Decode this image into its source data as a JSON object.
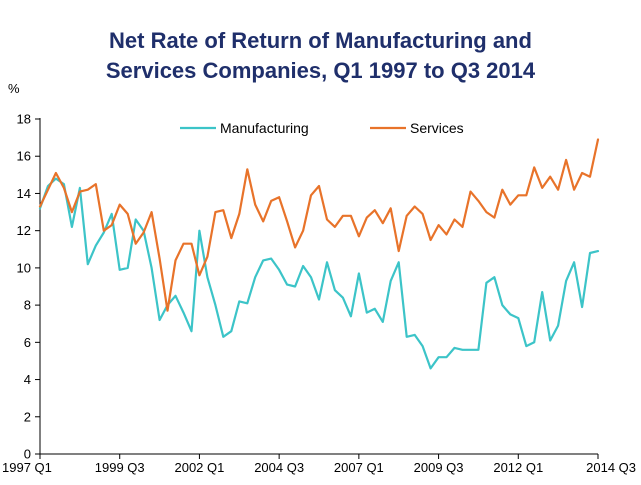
{
  "title_line1": "Net Rate of Return of Manufacturing and",
  "title_line2": "Services Companies, Q1 1997 to Q3 2014",
  "colors": {
    "title": "#1f2f6b",
    "manufacturing": "#3cc4c8",
    "services": "#e8732a",
    "axis": "#000000"
  },
  "chart_data": {
    "type": "line",
    "title": "Net Rate of Return of Manufacturing and Services Companies, Q1 1997 to Q3 2014",
    "ylabel": "%",
    "xlabel": "",
    "ylim": [
      0,
      18
    ],
    "yticks": [
      0,
      2,
      4,
      6,
      8,
      10,
      12,
      14,
      16,
      18
    ],
    "x_tick_labels": [
      "1997 Q1",
      "1999 Q3",
      "2002 Q1",
      "2004 Q3",
      "2007 Q1",
      "2009 Q3",
      "2012 Q1",
      "2014 Q3"
    ],
    "x_tick_index": [
      0,
      10,
      20,
      30,
      40,
      50,
      60,
      70
    ],
    "x_start": "1997 Q1",
    "x_end": "2014 Q3",
    "grid": false,
    "legend_position": "top",
    "series": [
      {
        "name": "Manufacturing",
        "values": [
          13.2,
          14.4,
          14.8,
          14.5,
          12.2,
          14.3,
          10.2,
          11.2,
          11.9,
          12.9,
          9.9,
          10.0,
          12.6,
          12.0,
          10.0,
          7.2,
          8.0,
          8.5,
          7.6,
          6.6,
          12.0,
          9.5,
          8.0,
          6.3,
          6.6,
          8.2,
          8.1,
          9.5,
          10.4,
          10.5,
          9.9,
          9.1,
          9.0,
          10.1,
          9.5,
          8.3,
          10.3,
          8.8,
          8.4,
          7.4,
          9.7,
          7.6,
          7.8,
          7.1,
          9.3,
          10.3,
          6.3,
          6.4,
          5.8,
          4.6,
          5.2,
          5.2,
          5.7,
          5.6,
          5.6,
          5.6,
          9.2,
          9.5,
          8.0,
          7.5,
          7.3,
          5.8,
          6.0,
          8.7,
          6.1,
          6.9,
          9.3,
          10.3,
          7.9,
          10.8,
          10.9
        ]
      },
      {
        "name": "Services",
        "values": [
          13.3,
          14.2,
          15.1,
          14.3,
          13.0,
          14.1,
          14.2,
          14.5,
          12.0,
          12.3,
          13.4,
          12.9,
          11.3,
          11.9,
          13.0,
          10.5,
          7.7,
          10.4,
          11.3,
          11.3,
          9.6,
          10.6,
          13.0,
          13.1,
          11.6,
          12.9,
          15.3,
          13.4,
          12.5,
          13.6,
          13.8,
          12.5,
          11.1,
          12.0,
          13.9,
          14.4,
          12.6,
          12.2,
          12.8,
          12.8,
          11.7,
          12.7,
          13.1,
          12.4,
          13.2,
          10.9,
          12.8,
          13.3,
          12.9,
          11.5,
          12.3,
          11.8,
          12.6,
          12.2,
          14.1,
          13.6,
          13.0,
          12.7,
          14.2,
          13.4,
          13.9,
          13.9,
          15.4,
          14.3,
          14.9,
          14.2,
          15.8,
          14.2,
          15.1,
          14.9,
          16.9
        ]
      }
    ]
  }
}
